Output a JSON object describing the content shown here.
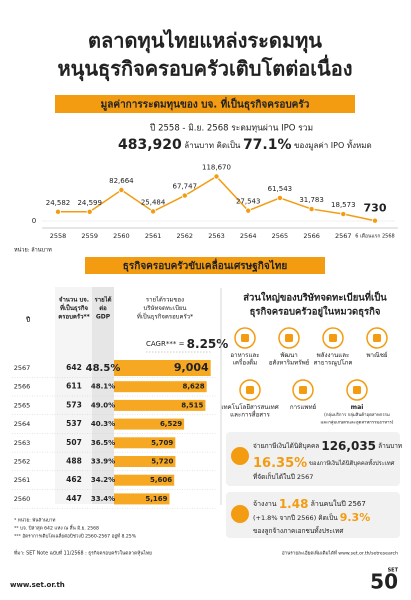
{
  "header": {
    "title": [
      "ตลาดทุนไทยแหล่งระดมทุน",
      "หนุนธุรกิจครอบครัวเติบโตต่อเนื่อง"
    ]
  },
  "ipo_section": {
    "banner": "มูลค่าการระดมทุนของ บจ. ที่เป็นธุรกิจครอบครัว",
    "summary_line1": "ปี 2558 - มิ.ย. 2568 ระดมทุนผ่าน IPO รวม",
    "total": "483,920",
    "total_unit": " ล้านบาท คิดเป็น ",
    "share": "77.1%",
    "share_suffix": " ของมูลค่า IPO ทั้งหมด",
    "unit_note": "หน่วย: ล้านบาท"
  },
  "chart_data": [
    {
      "type": "line",
      "categories": [
        "2558",
        "2559",
        "2560",
        "2561",
        "2562",
        "2563",
        "2564",
        "2565",
        "2566",
        "2567",
        "6 เดือนแรก 2568"
      ],
      "values": [
        24582,
        24599,
        82664,
        25484,
        67747,
        118670,
        27543,
        61543,
        31783,
        18573,
        730
      ],
      "value_labels": [
        "24,582",
        "24,599",
        "82,664",
        "25,484",
        "67,747",
        "118,670",
        "27,543",
        "61,543",
        "31,783",
        "18,573",
        "730"
      ],
      "color": "#f39c12",
      "ylim": [
        0,
        120000
      ],
      "yticks": [
        0
      ],
      "grid": true
    },
    {
      "type": "bar",
      "orientation": "horizontal",
      "categories": [
        "2567",
        "2566",
        "2565",
        "2564",
        "2563",
        "2562",
        "2561",
        "2560"
      ],
      "values": [
        9004,
        8628,
        8515,
        6529,
        5709,
        5720,
        5606,
        5169
      ],
      "value_labels": [
        "9,004",
        "8,628",
        "8,515",
        "6,529",
        "5,709",
        "5,720",
        "5,606",
        "5,169"
      ],
      "color": "#f7a823",
      "xlim": [
        0,
        9500
      ],
      "annotation_label": "CAGR*** = ",
      "annotation_value": "8.25%"
    }
  ],
  "economy_section": {
    "banner": "ธุรกิจครอบครัวขับเคลื่อนเศรษฐกิจไทย",
    "table": {
      "headers": [
        [
          "ปี"
        ],
        [
          "จำนวน บจ.",
          "ที่เป็นธุรกิจ",
          "ครอบครัว**"
        ],
        [
          "รายได้",
          "ต่อ",
          "GDP"
        ],
        [
          "รายได้รวมของ",
          "บริษัทจดทะเบียน",
          "ที่เป็นธุรกิจครอบครัว*"
        ]
      ],
      "companies": [
        642,
        611,
        573,
        537,
        507,
        488,
        462,
        447
      ],
      "gdp_share": [
        "48.5%",
        "48.1%",
        "49.0%",
        "40.3%",
        "36.5%",
        "33.9%",
        "34.2%",
        "33.4%"
      ]
    },
    "sectors_title": [
      "ส่วนใหญ่ของบริษัทจดทะเบียนที่เป็น",
      "ธุรกิจครอบครัวอยู่ในหมวดธุรกิจ"
    ],
    "sectors": [
      [
        "อาหารและ",
        "เครื่องดื่ม"
      ],
      [
        "พัฒนา",
        "อสังหาริมทรัพย์"
      ],
      [
        "พลังงานและ",
        "สาธารณูปโภค"
      ],
      [
        "พาณิชย์"
      ],
      [
        "เทคโนโลยีสารสนเทศ",
        "และการสื่อสาร"
      ],
      [
        "การแพทย์"
      ],
      [
        "mai",
        "(กลุ่มบริการ กลุ่มสินค้าอุตสาหกรรม",
        "และกลุ่มเกษตรและอุตสาหกรรมอาหาร)"
      ]
    ],
    "tax": [
      "จ่ายภาษีเงินได้นิติบุคคล ",
      "126,035",
      " ล้านบาท",
      "16.35%",
      " ของภาษีเงินได้นิติบุคคลทั้งประเทศ",
      "ที่จัดเก็บได้ในปี 2567"
    ],
    "employment": [
      "จ้างงาน ",
      "1.48",
      " ล้านคนในปี 2567",
      "(+1.8% จากปี 2566) คิดเป็น ",
      "9.3%",
      "ของลูกจ้างภาคเอกชนทั้งประเทศ"
    ],
    "notes": [
      "* หน่วย: พันล้านบาท",
      "** บจ. ปีล่าสุด 642 แห่ง ณ สิ้น มิ.ย. 2568",
      "*** อัตราการเติบโตเฉลี่ยต่อปีช่วงปี 2560-2567 อยู่ที่ 8.25%"
    ],
    "source": "ที่มา: SET Note ฉบับที่ 11/2568 : ธุรกิจครอบครัวในตลาดหุ้นไทย"
  },
  "footer": {
    "url": "www.set.or.th",
    "more": "อ่านรายละเอียดเพิ่มเติมได้ที่ www.set.or.th/setresearch",
    "logo_text": "SET",
    "logo_number": "50"
  }
}
